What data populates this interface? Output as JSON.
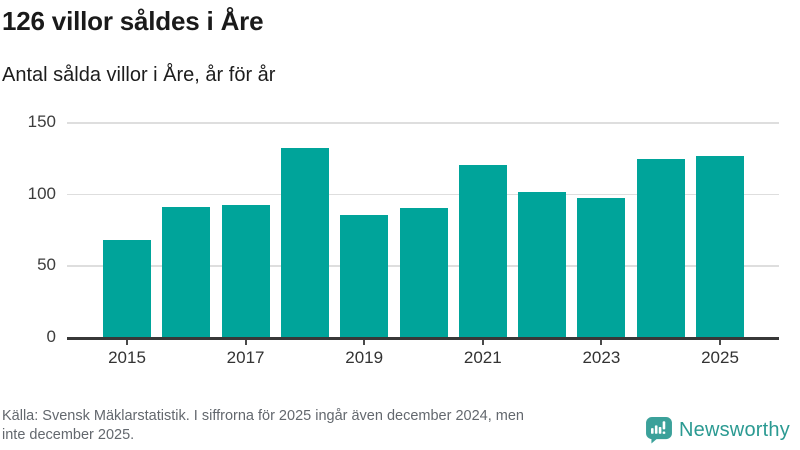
{
  "header": {
    "title": "126 villor såldes i Åre",
    "subtitle": "Antal sålda villor i Åre, år för år"
  },
  "chart_data": {
    "type": "bar",
    "categories": [
      2015,
      2016,
      2017,
      2018,
      2019,
      2020,
      2021,
      2022,
      2023,
      2024,
      2025
    ],
    "values": [
      68,
      91,
      92,
      132,
      85,
      90,
      120,
      101,
      97,
      124,
      126
    ],
    "title": "126 villor såldes i Åre",
    "subtitle": "Antal sålda villor i Åre, år för år",
    "xlabel": "",
    "ylabel": "",
    "ylim": [
      0,
      150
    ],
    "yticks": [
      0,
      50,
      100,
      150
    ],
    "xtick_labels": [
      "2015",
      "2017",
      "2019",
      "2021",
      "2023",
      "2025"
    ],
    "grid": true,
    "legend": false
  },
  "footer": {
    "source_lines": [
      "Källa: Svensk Mäklarstatistik. I siffrorna för 2025 ingår även december 2024, men",
      "inte december 2025."
    ],
    "brand": {
      "name": "Newsworthy"
    }
  },
  "colors": {
    "bar": "#00a49a",
    "axis": "#383838",
    "grid": "#dedede",
    "footer_text": "#63686e",
    "logo": "#3ba19a",
    "brand_text": "#2b9a92"
  }
}
